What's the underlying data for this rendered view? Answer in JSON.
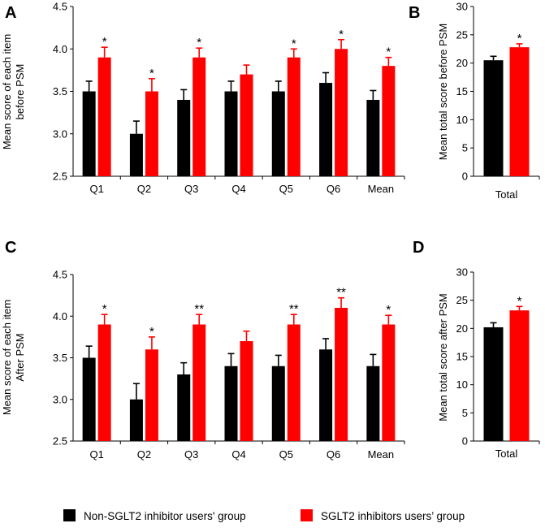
{
  "legend": {
    "series1": "Non-SGLT2 inhibitor users' group",
    "series2": "SGLT2 inhibitors users’ group",
    "color1": "#000000",
    "color2": "#ff0000"
  },
  "chart_data": [
    {
      "panel": "A",
      "type": "bar",
      "title": "",
      "xlabel": "",
      "ylabel": [
        "Mean score of each item",
        "before PSM"
      ],
      "ylim": [
        2.5,
        4.5
      ],
      "yticks": [
        "2.5",
        "3.0",
        "3.5",
        "4.0",
        "4.5"
      ],
      "categories": [
        "Q1",
        "Q2",
        "Q3",
        "Q4",
        "Q5",
        "Q6",
        "Mean"
      ],
      "series": [
        {
          "name": "Non-SGLT2 inhibitor users' group",
          "values": [
            3.5,
            3.0,
            3.4,
            3.5,
            3.5,
            3.6,
            3.4
          ],
          "errors": [
            0.12,
            0.15,
            0.12,
            0.12,
            0.12,
            0.12,
            0.11
          ]
        },
        {
          "name": "SGLT2 inhibitors users’ group",
          "values": [
            3.9,
            3.5,
            3.9,
            3.7,
            3.9,
            4.0,
            3.8
          ],
          "errors": [
            0.12,
            0.15,
            0.11,
            0.11,
            0.1,
            0.11,
            0.1
          ]
        }
      ],
      "annotations": [
        "*",
        "*",
        "*",
        "",
        "*",
        "*",
        "*"
      ]
    },
    {
      "panel": "B",
      "type": "bar",
      "title": "",
      "xlabel": "",
      "ylabel": [
        "Mean total score before PSM"
      ],
      "ylim": [
        0,
        30
      ],
      "yticks": [
        "0",
        "5",
        "10",
        "15",
        "20",
        "25",
        "30"
      ],
      "categories": [
        "Total"
      ],
      "series": [
        {
          "name": "Non-SGLT2 inhibitor users' group",
          "values": [
            20.5
          ],
          "errors": [
            0.7
          ]
        },
        {
          "name": "SGLT2 inhibitors users’ group",
          "values": [
            22.8
          ],
          "errors": [
            0.6
          ]
        }
      ],
      "annotations": [
        "*"
      ]
    },
    {
      "panel": "C",
      "type": "bar",
      "title": "",
      "xlabel": "",
      "ylabel": [
        "Mean score of each item",
        "After PSM"
      ],
      "ylim": [
        2.5,
        4.5
      ],
      "yticks": [
        "2.5",
        "3.0",
        "3.5",
        "4.0",
        "4.5"
      ],
      "categories": [
        "Q1",
        "Q2",
        "Q3",
        "Q4",
        "Q5",
        "Q6",
        "Mean"
      ],
      "series": [
        {
          "name": "Non-SGLT2 inhibitor users' group",
          "values": [
            3.5,
            3.0,
            3.3,
            3.4,
            3.4,
            3.6,
            3.4
          ],
          "errors": [
            0.14,
            0.19,
            0.14,
            0.15,
            0.13,
            0.13,
            0.14
          ]
        },
        {
          "name": "SGLT2 inhibitors users’ group",
          "values": [
            3.9,
            3.6,
            3.9,
            3.7,
            3.9,
            4.1,
            3.9
          ],
          "errors": [
            0.12,
            0.15,
            0.12,
            0.12,
            0.12,
            0.12,
            0.11
          ]
        }
      ],
      "annotations": [
        "*",
        "*",
        "**",
        "",
        "**",
        "**",
        "*"
      ]
    },
    {
      "panel": "D",
      "type": "bar",
      "title": "",
      "xlabel": "",
      "ylabel": [
        "Mean total score after PSM"
      ],
      "ylim": [
        0,
        30
      ],
      "yticks": [
        "0",
        "5",
        "10",
        "15",
        "20",
        "25",
        "30"
      ],
      "categories": [
        "Total"
      ],
      "series": [
        {
          "name": "Non-SGLT2 inhibitor users' group",
          "values": [
            20.2
          ],
          "errors": [
            0.8
          ]
        },
        {
          "name": "SGLT2 inhibitors users’ group",
          "values": [
            23.2
          ],
          "errors": [
            0.7
          ]
        }
      ],
      "annotations": [
        "*"
      ]
    }
  ]
}
